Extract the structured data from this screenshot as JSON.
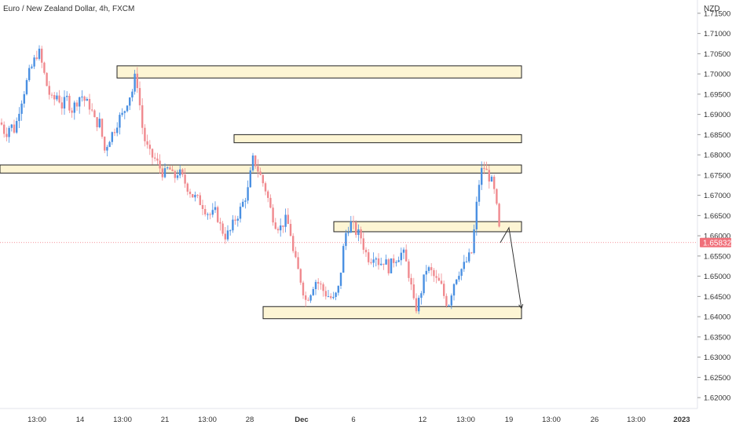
{
  "header": {
    "title": "Euro / New Zealand Dollar, 4h, FXCM",
    "currency": "NZD"
  },
  "last_price": {
    "value": 1.65832,
    "label": "1.65832",
    "color": "#f0707a"
  },
  "colors": {
    "up": "#4a90e2",
    "down": "#f08a8f",
    "zone_fill": "#fdf5d4",
    "zone_stroke": "#222222",
    "grid": "#ffffff",
    "axis_text": "#333333"
  },
  "chart_data": {
    "type": "candlestick",
    "title": "Euro / New Zealand Dollar, 4h, FXCM",
    "ylabel": "NZD",
    "ylim": [
      1.6175,
      1.7175
    ],
    "y_ticks": [
      "1.71500",
      "1.71000",
      "1.70500",
      "1.70000",
      "1.69500",
      "1.69000",
      "1.68500",
      "1.68000",
      "1.67500",
      "1.67000",
      "1.66500",
      "1.66000",
      "1.65500",
      "1.65000",
      "1.64500",
      "1.64000",
      "1.63500",
      "1.63000",
      "1.62500",
      "1.62000"
    ],
    "x_ticks": [
      "13:00",
      "14",
      "13:00",
      "21",
      "13:00",
      "28",
      "Dec",
      "6",
      "12",
      "13:00",
      "19",
      "13:00",
      "26",
      "13:00",
      "2023"
    ],
    "price_path": [
      [
        0,
        1.688
      ],
      [
        6,
        1.685
      ],
      [
        12,
        1.6875
      ],
      [
        18,
        1.686
      ],
      [
        24,
        1.692
      ],
      [
        30,
        1.696
      ],
      [
        36,
        1.7
      ],
      [
        42,
        1.703
      ],
      [
        48,
        1.706
      ],
      [
        54,
        1.701
      ],
      [
        60,
        1.696
      ],
      [
        66,
        1.693
      ],
      [
        72,
        1.695
      ],
      [
        78,
        1.692
      ],
      [
        84,
        1.694
      ],
      [
        90,
        1.691
      ],
      [
        96,
        1.693
      ],
      [
        102,
        1.695
      ],
      [
        108,
        1.693
      ],
      [
        114,
        1.692
      ],
      [
        120,
        1.688
      ],
      [
        126,
        1.688
      ],
      [
        132,
        1.681
      ],
      [
        138,
        1.684
      ],
      [
        144,
        1.686
      ],
      [
        150,
        1.689
      ],
      [
        156,
        1.69
      ],
      [
        162,
        1.694
      ],
      [
        168,
        1.696
      ],
      [
        172,
        1.7005
      ],
      [
        176,
        1.694
      ],
      [
        180,
        1.687
      ],
      [
        184,
        1.683
      ],
      [
        190,
        1.68
      ],
      [
        196,
        1.679
      ],
      [
        202,
        1.677
      ],
      [
        208,
        1.675
      ],
      [
        214,
        1.677
      ],
      [
        220,
        1.674
      ],
      [
        226,
        1.676
      ],
      [
        232,
        1.674
      ],
      [
        238,
        1.672
      ],
      [
        244,
        1.67
      ],
      [
        250,
        1.669
      ],
      [
        256,
        1.668
      ],
      [
        262,
        1.666
      ],
      [
        268,
        1.665
      ],
      [
        274,
        1.666
      ],
      [
        280,
        1.662
      ],
      [
        286,
        1.66
      ],
      [
        292,
        1.661
      ],
      [
        298,
        1.664
      ],
      [
        304,
        1.666
      ],
      [
        310,
        1.669
      ],
      [
        316,
        1.672
      ],
      [
        320,
        1.679
      ],
      [
        324,
        1.678
      ],
      [
        328,
        1.676
      ],
      [
        332,
        1.674
      ],
      [
        338,
        1.671
      ],
      [
        344,
        1.666
      ],
      [
        350,
        1.663
      ],
      [
        356,
        1.662
      ],
      [
        362,
        1.664
      ],
      [
        368,
        1.662
      ],
      [
        372,
        1.656
      ],
      [
        376,
        1.653
      ],
      [
        382,
        1.649
      ],
      [
        388,
        1.644
      ],
      [
        394,
        1.646
      ],
      [
        400,
        1.649
      ],
      [
        406,
        1.648
      ],
      [
        412,
        1.646
      ],
      [
        418,
        1.645
      ],
      [
        424,
        1.644
      ],
      [
        430,
        1.647
      ],
      [
        434,
        1.653
      ],
      [
        438,
        1.66
      ],
      [
        442,
        1.662
      ],
      [
        446,
        1.663
      ],
      [
        452,
        1.661
      ],
      [
        458,
        1.66
      ],
      [
        464,
        1.656
      ],
      [
        470,
        1.654
      ],
      [
        476,
        1.656
      ],
      [
        482,
        1.653
      ],
      [
        488,
        1.654
      ],
      [
        494,
        1.652
      ],
      [
        500,
        1.654
      ],
      [
        506,
        1.655
      ],
      [
        512,
        1.656
      ],
      [
        518,
        1.652
      ],
      [
        522,
        1.648
      ],
      [
        526,
        1.643
      ],
      [
        530,
        1.642
      ],
      [
        536,
        1.647
      ],
      [
        542,
        1.652
      ],
      [
        548,
        1.651
      ],
      [
        554,
        1.649
      ],
      [
        560,
        1.648
      ],
      [
        566,
        1.644
      ],
      [
        570,
        1.643
      ],
      [
        576,
        1.648
      ],
      [
        582,
        1.651
      ],
      [
        588,
        1.652
      ],
      [
        594,
        1.654
      ],
      [
        600,
        1.656
      ],
      [
        604,
        1.664
      ],
      [
        608,
        1.672
      ],
      [
        612,
        1.676
      ],
      [
        616,
        1.677
      ],
      [
        620,
        1.675
      ],
      [
        624,
        1.674
      ],
      [
        628,
        1.671
      ],
      [
        632,
        1.666
      ],
      [
        636,
        1.659
      ]
    ],
    "zones": [
      {
        "x0": 149,
        "x1": 664,
        "top": 1.702,
        "bottom": 1.699
      },
      {
        "x0": 298,
        "x1": 664,
        "top": 1.685,
        "bottom": 1.683
      },
      {
        "x0": 0,
        "x1": 664,
        "top": 1.6775,
        "bottom": 1.6755
      },
      {
        "x0": 425,
        "x1": 664,
        "top": 1.6635,
        "bottom": 1.661
      },
      {
        "x0": 335,
        "x1": 664,
        "top": 1.6425,
        "bottom": 1.6395
      }
    ],
    "projection": [
      [
        637,
        1.6583
      ],
      [
        648,
        1.662
      ],
      [
        664,
        1.642
      ]
    ],
    "grid": false,
    "legend": "none"
  }
}
